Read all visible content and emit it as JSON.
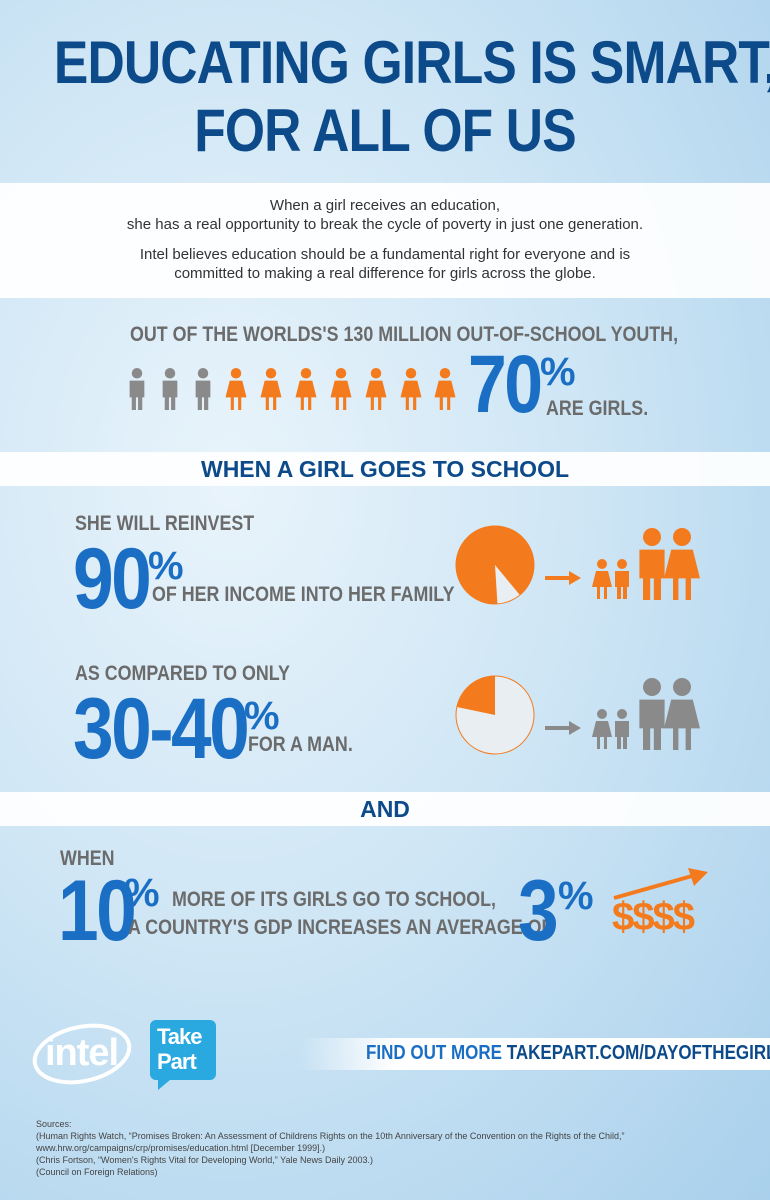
{
  "header": {
    "title_lines": [
      "EDUCATING GIRLS IS SMART,",
      "FOR ALL OF US"
    ]
  },
  "intro": {
    "lines": [
      "When a girl receives an education,",
      "she has a real opportunity to break the cycle of poverty in just one generation.",
      "Intel believes education should be a fundamental right for everyone and is",
      "committed to making a real difference for girls across the globe."
    ]
  },
  "out_of_school": {
    "heading": "OUT OF THE WORLDS'S 130 MILLION OUT-OF-SCHOOL YOUTH,",
    "figure": 70,
    "unit": "%",
    "caption": "ARE GIRLS."
  },
  "school": {
    "heading": "WHEN A GIRL GOES TO SCHOOL",
    "reinvest": {
      "lead": "SHE WILL REINVEST",
      "figure": 90,
      "unit": "%",
      "caption": "OF HER INCOME INTO HER FAMILY"
    },
    "compare": {
      "lead": "AS COMPARED TO ONLY",
      "figure": "30-40",
      "unit": "%",
      "caption": "FOR A MAN."
    }
  },
  "and": "AND",
  "gdp": {
    "lead": "WHEN",
    "figure": 10,
    "unit": "%",
    "line1": "MORE OF ITS GIRLS GO TO SCHOOL,",
    "line2": "A COUNTRY'S GDP INCREASES AN AVERAGE OF",
    "figure2": 3,
    "unit2": "%",
    "money": "$$$$"
  },
  "footer": {
    "intel": "intel",
    "takepart": [
      "Take",
      "Part"
    ],
    "cta_lead": "FIND OUT MORE",
    "cta_link": "TAKEPART.COM/DAYOFTHEGIRL"
  },
  "sources": {
    "label": "Sources:",
    "lines": [
      "(Human Rights Watch, “Promises Broken: An Assessment of Childrens Rights on the 10th Anniversary of the Convention on the Rights of the Child,”",
      "www.hrw.org/campaigns/crp/promises/education.html [December 1999].)",
      "(Chris Fortson, “Women's Rights Vital for Developing World,” Yale News Daily 2003.)",
      "(Council on Foreign Relations)"
    ]
  }
}
